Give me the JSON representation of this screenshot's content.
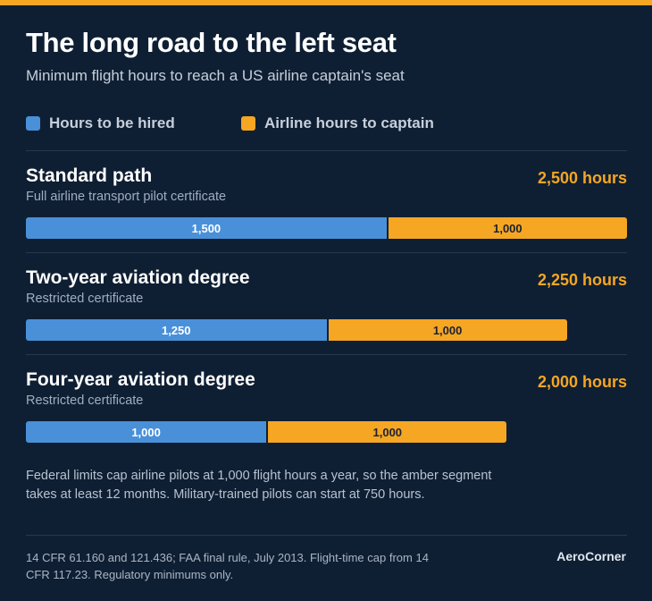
{
  "title": "The long road to the left seat",
  "subtitle": "Minimum flight hours to reach a US airline captain's seat",
  "legend": [
    {
      "label": "Hours to be hired",
      "color": "#4a90d9"
    },
    {
      "label": "Airline hours to captain",
      "color": "#f5a623"
    }
  ],
  "chart_data": {
    "type": "bar",
    "orientation": "horizontal",
    "stacked": true,
    "xlim": [
      0,
      2500
    ],
    "categories": [
      "Standard path",
      "Two-year aviation degree",
      "Four-year aviation degree"
    ],
    "subtitles": [
      "Full airline transport pilot certificate",
      "Restricted certificate",
      "Restricted certificate"
    ],
    "totals": [
      "2,500 hours",
      "2,250 hours",
      "2,000 hours"
    ],
    "series": [
      {
        "name": "Hours to be hired",
        "color": "#4a90d9",
        "values": [
          1500,
          1250,
          1000
        ],
        "labels": [
          "1,500",
          "1,250",
          "1,000"
        ]
      },
      {
        "name": "Airline hours to captain",
        "color": "#f5a623",
        "values": [
          1000,
          1000,
          1000
        ],
        "labels": [
          "1,000",
          "1,000",
          "1,000"
        ]
      }
    ],
    "legend_position": "top-left",
    "grid": false
  },
  "note": "Federal limits cap airline pilots at 1,000 flight hours a year, so the amber segment takes at least 12 months. Military-trained pilots can start at 750 hours.",
  "source": "14 CFR 61.160 and 121.436; FAA final rule, July 2013. Flight-time cap from 14 CFR 117.23. Regulatory minimums only.",
  "brand": "AeroCorner"
}
